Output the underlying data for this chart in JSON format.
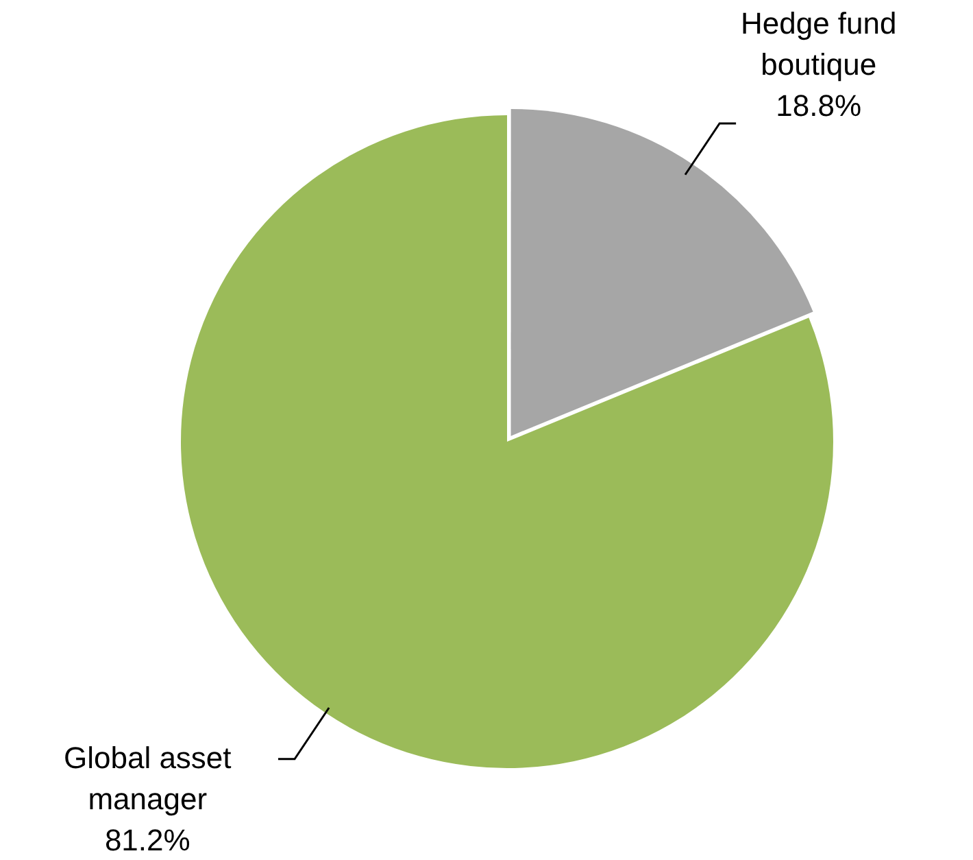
{
  "chart_data": {
    "type": "pie",
    "categories": [
      "Hedge fund boutique",
      "Global asset manager"
    ],
    "values": [
      18.8,
      81.2
    ],
    "colors": [
      "#a6a6a6",
      "#9bbb59"
    ],
    "value_labels": [
      "18.8%",
      "81.2%"
    ],
    "legend": false
  }
}
